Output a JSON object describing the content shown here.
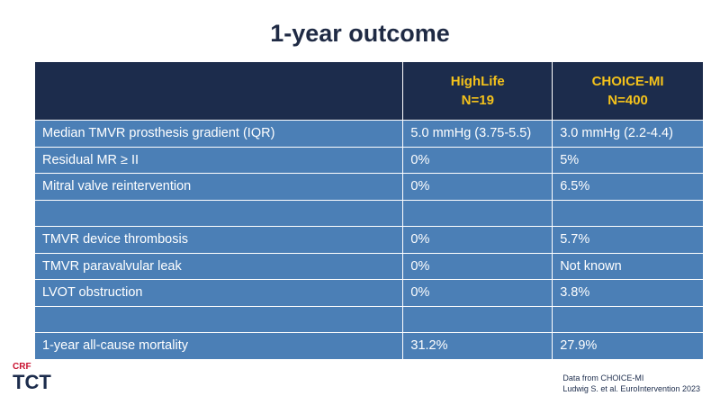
{
  "title": "1-year outcome",
  "table": {
    "header": [
      null,
      [
        "HighLife",
        "N=19"
      ],
      [
        "CHOICE-MI",
        "N=400"
      ]
    ],
    "rows": [
      [
        "Median TMVR prosthesis gradient (IQR)",
        "5.0 mmHg (3.75-5.5)",
        "3.0 mmHg (2.2-4.4)"
      ],
      [
        "Residual MR ≥ II",
        "0%",
        "5%"
      ],
      [
        "Mitral valve reintervention",
        "0%",
        "6.5%"
      ],
      [
        null,
        null,
        null
      ],
      [
        "TMVR device thrombosis",
        "0%",
        "5.7%"
      ],
      [
        "TMVR paravalvular leak",
        "0%",
        "Not known"
      ],
      [
        "LVOT obstruction",
        "0%",
        "3.8%"
      ],
      [
        null,
        null,
        null
      ],
      [
        "1-year all-cause mortality",
        "31.2%",
        "27.9%"
      ]
    ]
  },
  "footer": {
    "logo_top": "CRF",
    "logo_main": "TCT",
    "note": [
      "Data from CHOICE-MI",
      "Ludwig S. et al. EuroIntervention 2023"
    ]
  }
}
